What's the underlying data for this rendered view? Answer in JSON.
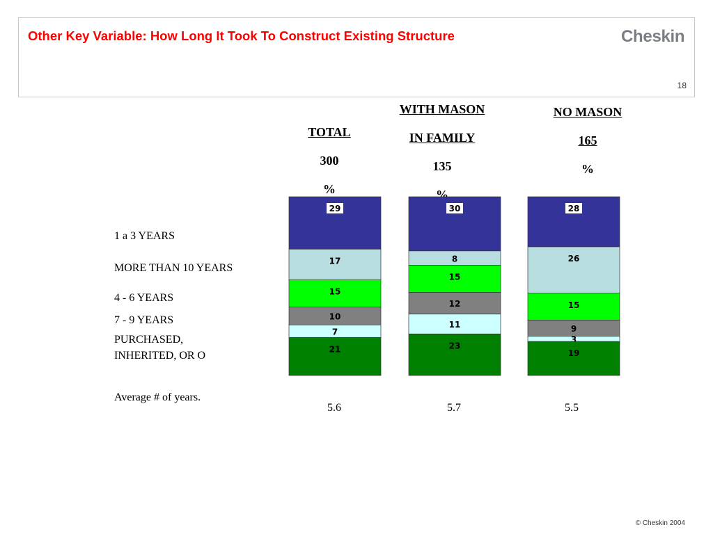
{
  "header": {
    "title": "Other Key Variable: How Long It Took To Construct Existing Structure",
    "logo": "Cheskin",
    "page_number": "18"
  },
  "columns": [
    {
      "lines": [
        "TOTAL",
        "300",
        "%"
      ],
      "underline": [
        true,
        true,
        false
      ],
      "average": "5.6"
    },
    {
      "lines": [
        "WITH MASON",
        "IN FAMILY",
        "135",
        "%"
      ],
      "underline": [
        true,
        true,
        false,
        false
      ],
      "average": "5.7"
    },
    {
      "lines": [
        "NO MASON",
        "165",
        "%"
      ],
      "underline": [
        true,
        true,
        false
      ],
      "average": "5.5"
    }
  ],
  "row_labels": [
    "1 a 3 YEARS",
    "MORE THAN 10 YEARS",
    "4 - 6 YEARS",
    "7 - 9 YEARS",
    "PURCHASED,",
    "INHERITED, OR O"
  ],
  "average_label": "Average # of years.",
  "footer": {
    "copyright": "© Cheskin 2004"
  },
  "chart_data": {
    "type": "bar",
    "stacked": true,
    "percent": true,
    "categories": [
      "TOTAL",
      "WITH MASON IN FAMILY",
      "NO MASON"
    ],
    "series": [
      {
        "name": "1 a 3 YEARS",
        "color": "#333399",
        "values": [
          29,
          30,
          28
        ]
      },
      {
        "name": "MORE THAN 10 YEARS",
        "color": "#b8dde1",
        "values": [
          17,
          8,
          26
        ]
      },
      {
        "name": "4 - 6 YEARS",
        "color": "#00ff00",
        "values": [
          15,
          15,
          15
        ]
      },
      {
        "name": "7 - 9 YEARS",
        "color": "#808080",
        "values": [
          10,
          12,
          9
        ]
      },
      {
        "name": "PURCHASED, INHERITED, OR O",
        "color": "#ccffff",
        "values": [
          7,
          11,
          3
        ]
      },
      {
        "name": "",
        "color": "#008000",
        "values": [
          21,
          23,
          19
        ]
      }
    ],
    "ylim": [
      0,
      100
    ]
  }
}
